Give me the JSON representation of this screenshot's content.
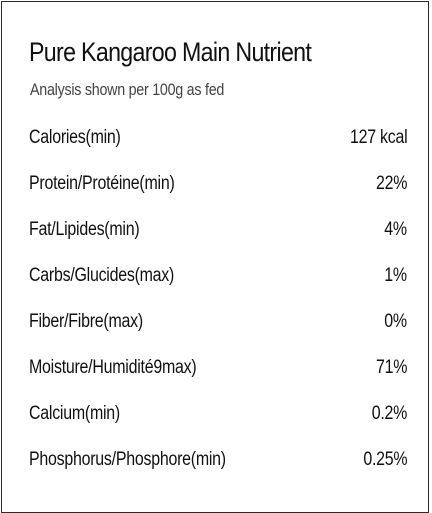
{
  "panel": {
    "title": "Pure Kangaroo Main Nutrient",
    "subtitle": "Analysis shown per 100g as fed"
  },
  "nutrients": [
    {
      "label": "Calories(min)",
      "value": "127 kcal"
    },
    {
      "label": "Protein/Protéine(min)",
      "value": "22%"
    },
    {
      "label": "Fat/Lipides(min)",
      "value": "4%"
    },
    {
      "label": "Carbs/Glucides(max)",
      "value": "1%"
    },
    {
      "label": "Fiber/Fibre(max)",
      "value": "0%"
    },
    {
      "label": "Moisture/Humidité9max)",
      "value": "71%"
    },
    {
      "label": "Calcium(min)",
      "value": "0.2%"
    },
    {
      "label": "Phosphorus/Phosphore(min)",
      "value": "0.25%"
    }
  ]
}
